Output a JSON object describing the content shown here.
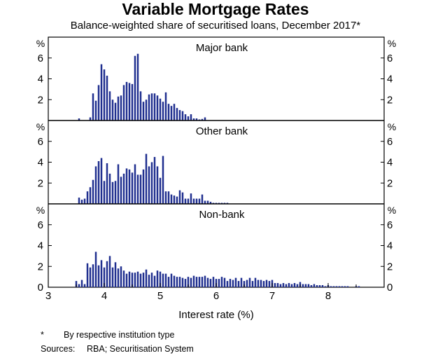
{
  "chart_data": {
    "type": "bar",
    "title": "Variable Mortgage Rates",
    "subtitle": "Balance-weighted share of securitised loans, December 2017*",
    "xlabel": "Interest rate (%)",
    "xlim": [
      3,
      9
    ],
    "x_ticks": [
      3,
      4,
      5,
      6,
      7,
      8
    ],
    "bin_width": 0.05,
    "bar_color": "#1f2f8f",
    "panels": [
      {
        "name": "Major bank",
        "ylabel": "%",
        "ylim": [
          0,
          8
        ],
        "y_ticks": [
          2,
          4,
          6
        ],
        "x": [
          3.55,
          3.75,
          3.8,
          3.85,
          3.9,
          3.95,
          4.0,
          4.05,
          4.1,
          4.15,
          4.2,
          4.25,
          4.3,
          4.35,
          4.4,
          4.45,
          4.5,
          4.55,
          4.6,
          4.65,
          4.7,
          4.75,
          4.8,
          4.85,
          4.9,
          4.95,
          5.0,
          5.05,
          5.1,
          5.15,
          5.2,
          5.25,
          5.3,
          5.35,
          5.4,
          5.45,
          5.5,
          5.55,
          5.6,
          5.65,
          5.7,
          5.75,
          5.8
        ],
        "values": [
          0.2,
          0.3,
          2.6,
          1.9,
          3.4,
          5.4,
          4.9,
          4.3,
          2.8,
          2.0,
          1.7,
          2.3,
          2.4,
          3.4,
          3.7,
          3.6,
          3.5,
          6.2,
          6.4,
          2.8,
          1.8,
          2.0,
          2.5,
          2.6,
          2.6,
          2.4,
          2.1,
          1.8,
          2.7,
          1.6,
          1.4,
          1.6,
          1.2,
          1.0,
          0.9,
          0.6,
          0.4,
          0.6,
          0.2,
          0.2,
          0.1,
          0.15,
          0.3
        ]
      },
      {
        "name": "Other bank",
        "ylabel": "%",
        "ylim": [
          0,
          8
        ],
        "y_ticks": [
          2,
          4,
          6
        ],
        "x": [
          3.55,
          3.6,
          3.65,
          3.7,
          3.75,
          3.8,
          3.85,
          3.9,
          3.95,
          4.0,
          4.05,
          4.1,
          4.15,
          4.2,
          4.25,
          4.3,
          4.35,
          4.4,
          4.45,
          4.5,
          4.55,
          4.6,
          4.65,
          4.7,
          4.75,
          4.8,
          4.85,
          4.9,
          4.95,
          5.0,
          5.05,
          5.1,
          5.15,
          5.2,
          5.25,
          5.3,
          5.35,
          5.4,
          5.45,
          5.5,
          5.55,
          5.6,
          5.65,
          5.7,
          5.75,
          5.8,
          5.85,
          5.9,
          5.95,
          6.0,
          6.05,
          6.1,
          6.15,
          6.2
        ],
        "values": [
          0.6,
          0.4,
          0.5,
          1.2,
          1.6,
          2.3,
          3.6,
          4.1,
          4.4,
          2.2,
          3.9,
          2.9,
          2.1,
          2.2,
          3.8,
          2.6,
          2.9,
          3.4,
          3.3,
          3.0,
          3.8,
          2.8,
          2.8,
          3.3,
          4.8,
          3.6,
          4.0,
          4.5,
          3.6,
          2.5,
          4.6,
          1.2,
          1.2,
          0.9,
          0.8,
          0.7,
          1.3,
          1.1,
          0.5,
          0.5,
          1.0,
          0.5,
          0.5,
          0.5,
          0.9,
          0.3,
          0.3,
          0.2,
          0.1,
          0.1,
          0.1,
          0.1,
          0.1,
          0.1
        ]
      },
      {
        "name": "Non-bank",
        "ylabel": "%",
        "ylim": [
          0,
          8
        ],
        "y_ticks": [
          0,
          2,
          4,
          6
        ],
        "x": [
          3.5,
          3.55,
          3.6,
          3.65,
          3.7,
          3.75,
          3.8,
          3.85,
          3.9,
          3.95,
          4.0,
          4.05,
          4.1,
          4.15,
          4.2,
          4.25,
          4.3,
          4.35,
          4.4,
          4.45,
          4.5,
          4.55,
          4.6,
          4.65,
          4.7,
          4.75,
          4.8,
          4.85,
          4.9,
          4.95,
          5.0,
          5.05,
          5.1,
          5.15,
          5.2,
          5.25,
          5.3,
          5.35,
          5.4,
          5.45,
          5.5,
          5.55,
          5.6,
          5.65,
          5.7,
          5.75,
          5.8,
          5.85,
          5.9,
          5.95,
          6.0,
          6.05,
          6.1,
          6.15,
          6.2,
          6.25,
          6.3,
          6.35,
          6.4,
          6.45,
          6.5,
          6.55,
          6.6,
          6.65,
          6.7,
          6.75,
          6.8,
          6.85,
          6.9,
          6.95,
          7.0,
          7.05,
          7.1,
          7.15,
          7.2,
          7.25,
          7.3,
          7.35,
          7.4,
          7.45,
          7.5,
          7.55,
          7.6,
          7.65,
          7.7,
          7.75,
          7.8,
          7.85,
          7.9,
          7.95,
          8.0,
          8.05,
          8.1,
          8.15,
          8.2,
          8.25,
          8.3,
          8.35,
          8.5,
          8.55
        ],
        "values": [
          0.6,
          0.3,
          0.7,
          0.3,
          2.3,
          1.9,
          2.2,
          3.4,
          2.1,
          2.6,
          1.9,
          2.5,
          3.0,
          1.9,
          2.4,
          1.8,
          2.0,
          1.6,
          1.3,
          1.5,
          1.4,
          1.4,
          1.5,
          1.3,
          1.4,
          1.7,
          1.2,
          1.4,
          1.1,
          1.6,
          1.5,
          1.3,
          1.3,
          1.0,
          1.3,
          1.1,
          1.0,
          1.0,
          0.9,
          0.8,
          1.0,
          0.9,
          1.1,
          1.0,
          1.0,
          1.0,
          1.1,
          0.9,
          0.8,
          1.0,
          0.8,
          0.8,
          1.0,
          0.9,
          0.6,
          0.8,
          0.7,
          0.9,
          0.6,
          0.9,
          0.6,
          0.7,
          0.9,
          0.6,
          0.9,
          0.7,
          0.7,
          0.6,
          0.7,
          0.6,
          0.7,
          0.4,
          0.4,
          0.3,
          0.4,
          0.3,
          0.4,
          0.3,
          0.4,
          0.3,
          0.5,
          0.3,
          0.3,
          0.3,
          0.2,
          0.3,
          0.2,
          0.2,
          0.2,
          0.1,
          0.2,
          0.1,
          0.1,
          0.1,
          0.1,
          0.1,
          0.1,
          0.1,
          0.1,
          0.1
        ]
      }
    ]
  },
  "footnote": {
    "mark": "*",
    "text": "By respective institution type"
  },
  "sources": {
    "label": "Sources:",
    "text": "RBA; Securitisation System"
  }
}
